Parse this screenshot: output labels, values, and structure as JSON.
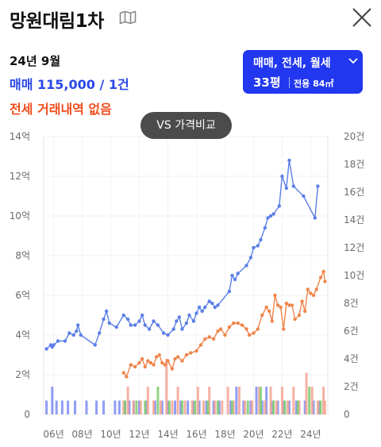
{
  "header": {
    "title": "망원대림1차",
    "map_icon": "map-icon",
    "close_icon": "close-icon"
  },
  "summary": {
    "date": "24년 9월",
    "trade": "매매 115,000 / 1건",
    "jeonse": "전세 거래내역 없음"
  },
  "selector": {
    "types": "매매, 전세, 월세",
    "pyeong": "33평",
    "area": "전용 84㎡"
  },
  "compare_button": "VS 가격비교",
  "colors": {
    "trade": "#5b7fe6",
    "jeonse": "#f0854c",
    "selector_bg": "#2237f0",
    "button_bg": "#4b4b4b",
    "trade_text": "#2a47e8",
    "jeonse_text": "#f04d1c",
    "vol_trade": "#7d8cf2",
    "vol_jeonse": "#f5a392",
    "vol_wolse": "#7fcc6e"
  },
  "chart_data": {
    "type": "line",
    "x_unit": "year",
    "x_ticks": [
      "06년",
      "08년",
      "10년",
      "12년",
      "14년",
      "16년",
      "18년",
      "20년",
      "22년",
      "24년"
    ],
    "x_tick_values": [
      2006,
      2008,
      2010,
      2012,
      2014,
      2016,
      2018,
      2020,
      2022,
      2024
    ],
    "xlim": [
      2005.3,
      2025.2
    ],
    "y_left": {
      "ticks": [
        "0",
        "2억",
        "4억",
        "6억",
        "8억",
        "10억",
        "12억",
        "14억"
      ],
      "values": [
        0,
        2,
        4,
        6,
        8,
        10,
        12,
        14
      ],
      "ylim": [
        0,
        14
      ]
    },
    "y_right": {
      "ticks": [
        "0",
        "2건",
        "4건",
        "6건",
        "8건",
        "10건",
        "12건",
        "14건",
        "16건",
        "18건",
        "20건"
      ],
      "values": [
        0,
        2,
        4,
        6,
        8,
        10,
        12,
        14,
        16,
        18,
        20
      ],
      "ylim": [
        0,
        20
      ]
    },
    "grid": true,
    "series": [
      {
        "name": "매매",
        "axis": "left",
        "points": [
          [
            2005.5,
            3.3
          ],
          [
            2005.8,
            3.5
          ],
          [
            2005.9,
            3.4
          ],
          [
            2006.0,
            3.5
          ],
          [
            2006.3,
            3.7
          ],
          [
            2006.8,
            3.7
          ],
          [
            2007.1,
            4.1
          ],
          [
            2007.4,
            4.0
          ],
          [
            2007.6,
            4.2
          ],
          [
            2007.7,
            4.5
          ],
          [
            2007.9,
            4.0
          ],
          [
            2008.9,
            3.5
          ],
          [
            2009.2,
            4.1
          ],
          [
            2009.5,
            4.8
          ],
          [
            2009.7,
            5.2
          ],
          [
            2009.9,
            4.6
          ],
          [
            2010.4,
            4.4
          ],
          [
            2010.9,
            5.0
          ],
          [
            2011.2,
            4.8
          ],
          [
            2011.4,
            4.5
          ],
          [
            2011.7,
            4.5
          ],
          [
            2012.0,
            4.7
          ],
          [
            2012.2,
            5.0
          ],
          [
            2012.4,
            4.5
          ],
          [
            2012.7,
            4.3
          ],
          [
            2013.0,
            4.7
          ],
          [
            2013.3,
            4.5
          ],
          [
            2013.7,
            4.1
          ],
          [
            2014.0,
            4.0
          ],
          [
            2014.4,
            4.3
          ],
          [
            2014.6,
            4.7
          ],
          [
            2014.8,
            4.9
          ],
          [
            2015.0,
            4.3
          ],
          [
            2015.3,
            4.6
          ],
          [
            2015.5,
            5.0
          ],
          [
            2015.8,
            4.7
          ],
          [
            2016.0,
            5.1
          ],
          [
            2016.2,
            5.4
          ],
          [
            2016.4,
            5.2
          ],
          [
            2016.6,
            5.4
          ],
          [
            2016.9,
            5.7
          ],
          [
            2017.1,
            5.6
          ],
          [
            2017.3,
            5.4
          ],
          [
            2017.5,
            5.5
          ],
          [
            2018.3,
            6.2
          ],
          [
            2018.5,
            7.0
          ],
          [
            2018.7,
            6.8
          ],
          [
            2018.9,
            7.1
          ],
          [
            2019.5,
            7.5
          ],
          [
            2019.8,
            7.9
          ],
          [
            2020.0,
            8.4
          ],
          [
            2020.3,
            8.5
          ],
          [
            2020.5,
            8.8
          ],
          [
            2020.8,
            9.4
          ],
          [
            2021.0,
            9.9
          ],
          [
            2021.2,
            10.0
          ],
          [
            2021.4,
            10.1
          ],
          [
            2021.8,
            10.5
          ],
          [
            2022.0,
            12.0
          ],
          [
            2022.3,
            11.4
          ],
          [
            2022.5,
            12.8
          ],
          [
            2022.8,
            11.5
          ],
          [
            2023.5,
            11.0
          ],
          [
            2024.3,
            9.9
          ],
          [
            2024.5,
            11.5
          ]
        ]
      },
      {
        "name": "전세",
        "axis": "left",
        "points": [
          [
            2010.9,
            2.1
          ],
          [
            2011.1,
            1.9
          ],
          [
            2011.4,
            2.5
          ],
          [
            2011.7,
            2.4
          ],
          [
            2012.0,
            2.6
          ],
          [
            2012.2,
            2.8
          ],
          [
            2012.4,
            2.4
          ],
          [
            2012.6,
            2.7
          ],
          [
            2012.8,
            2.6
          ],
          [
            2013.0,
            2.5
          ],
          [
            2013.2,
            2.9
          ],
          [
            2013.4,
            3.0
          ],
          [
            2013.6,
            2.6
          ],
          [
            2013.8,
            2.5
          ],
          [
            2014.0,
            2.7
          ],
          [
            2014.3,
            2.3
          ],
          [
            2014.5,
            2.8
          ],
          [
            2014.7,
            2.9
          ],
          [
            2015.0,
            2.7
          ],
          [
            2015.3,
            3.0
          ],
          [
            2015.6,
            3.1
          ],
          [
            2016.0,
            3.2
          ],
          [
            2016.3,
            3.5
          ],
          [
            2016.6,
            3.8
          ],
          [
            2016.9,
            3.9
          ],
          [
            2017.2,
            3.8
          ],
          [
            2017.5,
            4.2
          ],
          [
            2017.7,
            4.3
          ],
          [
            2018.0,
            4.0
          ],
          [
            2018.3,
            4.4
          ],
          [
            2018.6,
            4.6
          ],
          [
            2018.9,
            4.6
          ],
          [
            2019.2,
            4.5
          ],
          [
            2019.5,
            4.3
          ],
          [
            2019.7,
            4.0
          ],
          [
            2020.0,
            4.1
          ],
          [
            2020.3,
            4.3
          ],
          [
            2020.6,
            5.0
          ],
          [
            2020.9,
            5.4
          ],
          [
            2021.1,
            5.2
          ],
          [
            2021.3,
            4.7
          ],
          [
            2021.5,
            6.0
          ],
          [
            2021.7,
            5.5
          ],
          [
            2021.9,
            5.4
          ],
          [
            2022.1,
            4.3
          ],
          [
            2022.3,
            5.6
          ],
          [
            2022.5,
            5.5
          ],
          [
            2022.7,
            5.5
          ],
          [
            2022.9,
            4.8
          ],
          [
            2023.2,
            5.0
          ],
          [
            2023.4,
            5.7
          ],
          [
            2023.6,
            5.2
          ],
          [
            2023.8,
            6.3
          ],
          [
            2024.0,
            6.1
          ],
          [
            2024.2,
            6.0
          ],
          [
            2024.4,
            6.3
          ],
          [
            2024.7,
            6.9
          ],
          [
            2024.9,
            7.2
          ],
          [
            2025.0,
            6.7
          ]
        ]
      }
    ],
    "volume": {
      "axis": "right",
      "trade": [
        [
          2005.5,
          1
        ],
        [
          2005.9,
          2
        ],
        [
          2006.2,
          1
        ],
        [
          2006.6,
          1
        ],
        [
          2007.0,
          1
        ],
        [
          2007.5,
          1
        ],
        [
          2008.3,
          1
        ],
        [
          2009.0,
          1
        ],
        [
          2009.5,
          1
        ],
        [
          2010.3,
          1
        ],
        [
          2010.6,
          1
        ],
        [
          2011.0,
          1
        ],
        [
          2011.3,
          1
        ],
        [
          2011.6,
          1
        ],
        [
          2012.0,
          1
        ],
        [
          2012.5,
          1
        ],
        [
          2013.1,
          1
        ],
        [
          2013.6,
          1
        ],
        [
          2014.0,
          1
        ],
        [
          2014.5,
          1
        ],
        [
          2014.9,
          1
        ],
        [
          2015.4,
          1
        ],
        [
          2015.8,
          1
        ],
        [
          2016.2,
          1
        ],
        [
          2016.7,
          1
        ],
        [
          2017.2,
          1
        ],
        [
          2017.6,
          1
        ],
        [
          2018.4,
          1
        ],
        [
          2018.8,
          2
        ],
        [
          2019.3,
          1
        ],
        [
          2019.8,
          1
        ],
        [
          2020.2,
          2
        ],
        [
          2020.6,
          1
        ],
        [
          2020.9,
          2
        ],
        [
          2021.3,
          1
        ],
        [
          2021.7,
          1
        ],
        [
          2022.1,
          1
        ],
        [
          2022.5,
          1
        ],
        [
          2023.0,
          1
        ],
        [
          2023.6,
          1
        ],
        [
          2024.2,
          1
        ],
        [
          2024.6,
          1
        ]
      ],
      "jeonse": [
        [
          2010.9,
          1
        ],
        [
          2011.2,
          2
        ],
        [
          2011.6,
          1
        ],
        [
          2012.1,
          1
        ],
        [
          2012.6,
          2
        ],
        [
          2013.0,
          1
        ],
        [
          2013.5,
          1
        ],
        [
          2013.9,
          4
        ],
        [
          2014.3,
          1
        ],
        [
          2014.7,
          2
        ],
        [
          2015.2,
          1
        ],
        [
          2015.7,
          1
        ],
        [
          2016.1,
          2
        ],
        [
          2016.5,
          1
        ],
        [
          2016.9,
          2
        ],
        [
          2017.3,
          1
        ],
        [
          2017.8,
          1
        ],
        [
          2018.2,
          2
        ],
        [
          2018.6,
          1
        ],
        [
          2019.0,
          2
        ],
        [
          2019.4,
          1
        ],
        [
          2019.9,
          1
        ],
        [
          2020.4,
          2
        ],
        [
          2020.8,
          1
        ],
        [
          2021.2,
          2
        ],
        [
          2021.6,
          1
        ],
        [
          2022.0,
          2
        ],
        [
          2022.4,
          1
        ],
        [
          2022.8,
          2
        ],
        [
          2023.2,
          1
        ],
        [
          2023.7,
          3
        ],
        [
          2024.1,
          2
        ],
        [
          2024.5,
          1
        ],
        [
          2024.9,
          2
        ],
        [
          2025.0,
          1
        ]
      ],
      "wolse": [
        [
          2011.0,
          1
        ],
        [
          2011.8,
          1
        ],
        [
          2012.4,
          1
        ],
        [
          2013.3,
          2
        ],
        [
          2014.1,
          1
        ],
        [
          2015.0,
          1
        ],
        [
          2015.9,
          1
        ],
        [
          2016.8,
          1
        ],
        [
          2017.5,
          1
        ],
        [
          2018.5,
          1
        ],
        [
          2019.6,
          1
        ],
        [
          2020.5,
          2
        ],
        [
          2021.4,
          1
        ],
        [
          2022.2,
          1
        ],
        [
          2023.1,
          1
        ],
        [
          2023.9,
          2
        ],
        [
          2024.7,
          1
        ]
      ]
    }
  }
}
